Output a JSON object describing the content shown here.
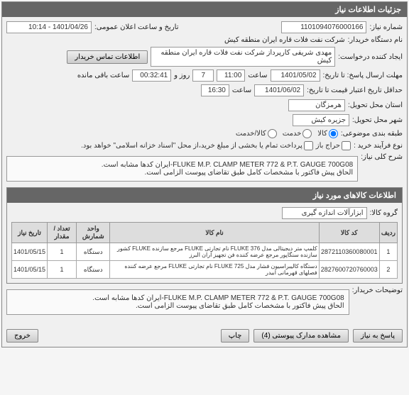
{
  "panel_title": "جزئیات اطلاعات نیاز",
  "fields": {
    "need_no_label": "شماره نیاز:",
    "need_no": "1101094076000166",
    "ann_label": "تاریخ و ساعت اعلان عمومی:",
    "ann_value": "1401/04/26 - 10:14",
    "buyer_label": "نام دستگاه خریدار:",
    "buyer": "شرکت نفت فلات قاره ایران منطقه کیش",
    "creator_label": "ایجاد کننده درخواست:",
    "creator": "مهدی شریفی کارپرداز شرکت نفت فلات قاره ایران منطقه کیش",
    "contact_btn": "اطلاعات تماس خریدار",
    "deadline_label": "مهلت ارسال پاسخ: تا تاریخ:",
    "deadline_date": "1401/05/02",
    "time_label": "ساعت",
    "deadline_time": "11:00",
    "days_label": "روز و",
    "days": "7",
    "remain_time": "00:32:41",
    "remain_label": "ساعت باقی مانده",
    "validity_label": "حداقل تاریخ اعتبار قیمت تا تاریخ:",
    "validity_date": "1401/06/02",
    "validity_time": "16:30",
    "province_label": "استان محل تحویل:",
    "province": "هرمزگان",
    "city_label": "شهر محل تحویل:",
    "city": "جزیره کیش",
    "category_label": "طبقه بندی موضوعی:",
    "cat_goods": "کالا",
    "cat_service": "خدمت",
    "cat_both": "کالا/خدمت",
    "process_label": "نوع فرآیند خرید :",
    "proc_open": "حراج باز",
    "proc_text": "پرداخت تمام یا بخشی از مبلغ خرید،از محل \"اسناد خزانه اسلامی\" خواهد بود."
  },
  "desc": {
    "title_label": "شرح کلی نیاز:",
    "text": "FLUKE M.P. CLAMP METER 772 & P.T. GAUGE 700G08-ایران کدها مشابه است.\nالحاق پیش فاکتور با مشخصات کامل طبق تقاضای پیوست الزامی است."
  },
  "items_section": {
    "header": "اطلاعات کالاهای مورد نیاز",
    "group_label": "گروه کالا:",
    "group_value": "ابزارآلات اندازه گیری"
  },
  "table": {
    "cols": [
      "ردیف",
      "کد کالا",
      "نام کالا",
      "واحد شمارش",
      "تعداد / مقدار",
      "تاریخ نیاز"
    ],
    "rows": [
      {
        "idx": "1",
        "code": "2872110360080001",
        "name": "کلمپ متر دیجیتالی مدل FLUKE 376 نام تجارتی FLUKE مرجع سازنده FLUKE کشور سازنده سنگاپور مرجع عرضه کننده فن تجهیز آران البرز",
        "unit": "دستگاه",
        "qty": "1",
        "date": "1401/05/15"
      },
      {
        "idx": "2",
        "code": "2827600720760003",
        "name": "دستگاه کالیبراسیون فشار مدل FLUKE 725 نام تجارتی FLUKE مرجع عرضه کننده فصلهای قهرمانی ابیدر",
        "unit": "دستگاه",
        "qty": "1",
        "date": "1401/05/15"
      }
    ]
  },
  "buyer_notes": {
    "label": "توضیحات خریدار:",
    "text": "FLUKE M.P. CLAMP METER 772 & P.T. GAUGE 700G08-ایران کدها مشابه است.\nالحاق پیش فاکتور با مشخصات کامل طبق تقاضای پیوست الزامی است."
  },
  "footer": {
    "reply": "پاسخ به نیاز",
    "attach": "مشاهده مدارک پیوستی (4)",
    "print": "چاپ",
    "exit": "خروج"
  },
  "colors": {
    "header_bg": "#666666",
    "header_fg": "#ffffff",
    "panel_bg": "#f0f0f0",
    "border": "#888888"
  }
}
